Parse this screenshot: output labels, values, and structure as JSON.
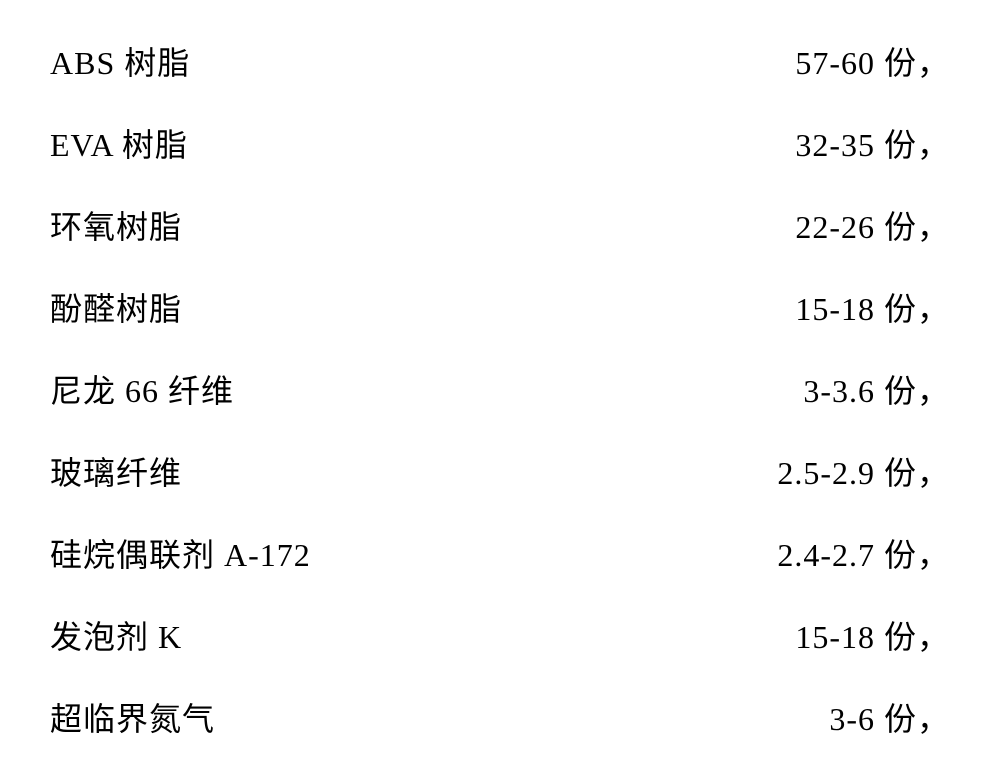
{
  "composition_table": {
    "type": "table",
    "text_color": "#000000",
    "background_color": "#ffffff",
    "font_family": "SimSun",
    "font_size": 32,
    "row_padding": 18,
    "rows": [
      {
        "label": "ABS 树脂",
        "value": "57-60 份，"
      },
      {
        "label": "EVA 树脂",
        "value": "32-35 份，"
      },
      {
        "label": "环氧树脂",
        "value": "22-26 份，"
      },
      {
        "label": "酚醛树脂",
        "value": "15-18 份，"
      },
      {
        "label": "尼龙 66 纤维",
        "value": "3-3.6 份，"
      },
      {
        "label": "玻璃纤维",
        "value": "2.5-2.9 份，"
      },
      {
        "label": "硅烷偶联剂 A-172",
        "value": "2.4-2.7 份，"
      },
      {
        "label": "发泡剂 K",
        "value": "15-18 份，"
      },
      {
        "label": "超临界氮气",
        "value": "3-6 份，"
      }
    ]
  }
}
